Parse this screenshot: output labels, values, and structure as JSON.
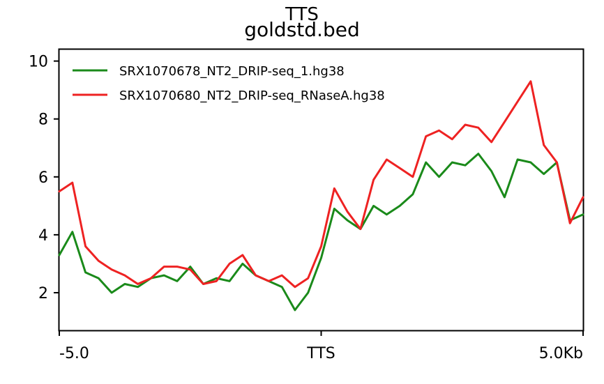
{
  "chart_data": {
    "type": "line",
    "title": "TTS",
    "subtitle": "goldstd.bed",
    "xlabel": "",
    "ylabel": "",
    "xlim": [
      -5.0,
      5.0
    ],
    "ylim": [
      0.7,
      10.4
    ],
    "x_ticks": [
      {
        "value": -5.0,
        "label": "-5.0"
      },
      {
        "value": 0.0,
        "label": "TTS"
      },
      {
        "value": 5.0,
        "label": "5.0Kb"
      }
    ],
    "y_ticks": [
      {
        "value": 2,
        "label": "2"
      },
      {
        "value": 4,
        "label": "4"
      },
      {
        "value": 6,
        "label": "6"
      },
      {
        "value": 8,
        "label": "8"
      },
      {
        "value": 10,
        "label": "10"
      }
    ],
    "grid": false,
    "legend_position": "top-left",
    "series": [
      {
        "name": "SRX1070678_NT2_DRIP-seq_1.hg38",
        "color": "#1a8a1a",
        "x": [
          -5.0,
          -4.75,
          -4.5,
          -4.25,
          -4.0,
          -3.75,
          -3.5,
          -3.25,
          -3.0,
          -2.75,
          -2.5,
          -2.25,
          -2.0,
          -1.75,
          -1.5,
          -1.25,
          -1.0,
          -0.75,
          -0.5,
          -0.25,
          0.0,
          0.25,
          0.5,
          0.75,
          1.0,
          1.25,
          1.5,
          1.75,
          2.0,
          2.25,
          2.5,
          2.75,
          3.0,
          3.25,
          3.5,
          3.75,
          4.0,
          4.25,
          4.5,
          4.75,
          5.0
        ],
        "y": [
          3.3,
          4.1,
          2.7,
          2.5,
          2.0,
          2.3,
          2.2,
          2.5,
          2.6,
          2.4,
          2.9,
          2.3,
          2.5,
          2.4,
          3.0,
          2.6,
          2.4,
          2.2,
          1.4,
          2.0,
          3.2,
          4.9,
          4.5,
          4.2,
          5.0,
          4.7,
          5.0,
          5.4,
          6.5,
          6.0,
          6.5,
          6.4,
          6.8,
          6.2,
          5.3,
          6.6,
          6.5,
          6.1,
          6.5,
          4.5,
          4.7
        ]
      },
      {
        "name": "SRX1070680_NT2_DRIP-seq_RNaseA.hg38",
        "color": "#ee2222",
        "x": [
          -5.0,
          -4.75,
          -4.5,
          -4.25,
          -4.0,
          -3.75,
          -3.5,
          -3.25,
          -3.0,
          -2.75,
          -2.5,
          -2.25,
          -2.0,
          -1.75,
          -1.5,
          -1.25,
          -1.0,
          -0.75,
          -0.5,
          -0.25,
          0.0,
          0.25,
          0.5,
          0.75,
          1.0,
          1.25,
          1.5,
          1.75,
          2.0,
          2.25,
          2.5,
          2.75,
          3.0,
          3.25,
          3.5,
          3.75,
          4.0,
          4.25,
          4.5,
          4.75,
          5.0
        ],
        "y": [
          5.5,
          5.8,
          3.6,
          3.1,
          2.8,
          2.6,
          2.3,
          2.5,
          2.9,
          2.9,
          2.8,
          2.3,
          2.4,
          3.0,
          3.3,
          2.6,
          2.4,
          2.6,
          2.2,
          2.5,
          3.6,
          5.6,
          4.8,
          4.2,
          5.9,
          6.6,
          6.3,
          6.0,
          7.4,
          7.6,
          7.3,
          7.8,
          7.7,
          7.2,
          7.9,
          8.6,
          9.3,
          7.1,
          6.5,
          4.4,
          5.3
        ]
      }
    ]
  }
}
